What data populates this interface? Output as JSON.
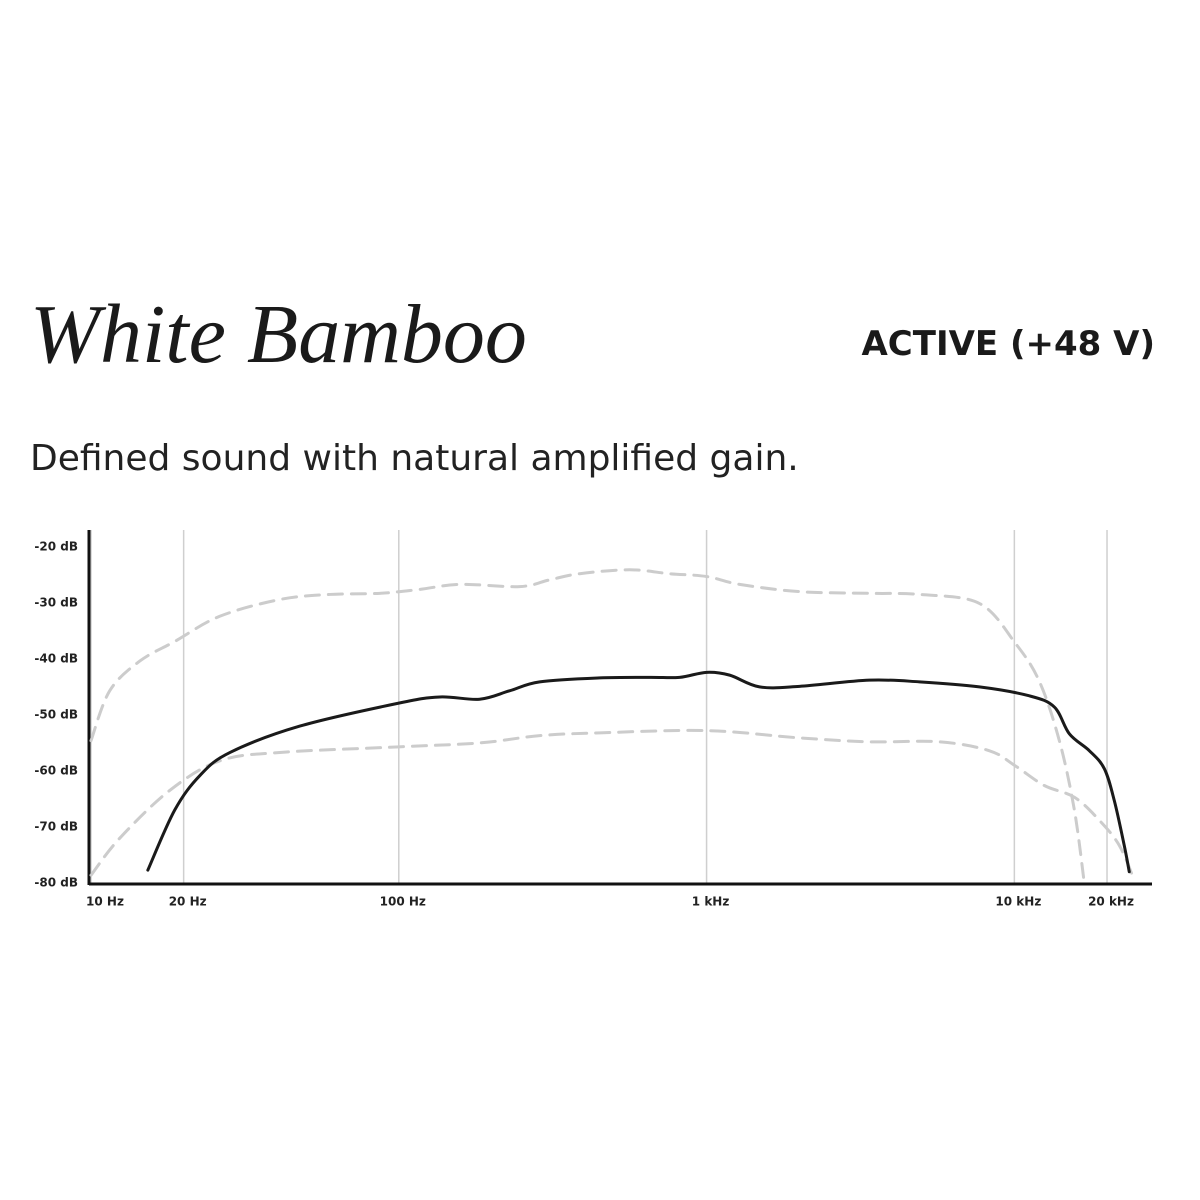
{
  "chart_data": {
    "type": "line",
    "title": "White Bamboo",
    "badge": "ACTIVE (+48 V)",
    "subtitle": "Defined sound with natural amplified gain.",
    "log_x": true,
    "grid": true,
    "xlim": [
      10,
      28000
    ],
    "ylim": [
      -80,
      -17
    ],
    "xticks": [
      {
        "value": 10,
        "label": "10 Hz"
      },
      {
        "value": 20,
        "label": "20 Hz"
      },
      {
        "value": 100,
        "label": "100 Hz"
      },
      {
        "value": 1000,
        "label": "1 kHz"
      },
      {
        "value": 10000,
        "label": "10 kHz"
      },
      {
        "value": 20000,
        "label": "20 kHz"
      }
    ],
    "yticks": [
      {
        "value": -20,
        "label": "-20 dB"
      },
      {
        "value": -30,
        "label": "-30 dB"
      },
      {
        "value": -40,
        "label": "-40 dB"
      },
      {
        "value": -50,
        "label": "-50 dB"
      },
      {
        "value": -60,
        "label": "-60 dB"
      },
      {
        "value": -70,
        "label": "-70 dB"
      },
      {
        "value": -80,
        "label": "-80 dB"
      }
    ],
    "series": [
      {
        "color": "#cccccc",
        "dashed": true,
        "x": [
          10,
          11.5,
          14.4,
          18.7,
          26.2,
          41.1,
          59.7,
          86.7,
          117,
          158,
          247,
          309,
          387,
          562,
          758,
          1000,
          1280,
          2004,
          3381,
          4918,
          7695,
          10070,
          12050,
          14000,
          15670,
          16870
        ],
        "values": [
          -54.6,
          -45.7,
          -40.4,
          -36.9,
          -32.4,
          -29.4,
          -28.5,
          -28.3,
          -27.6,
          -26.7,
          -27.1,
          -25.9,
          -24.8,
          -24.1,
          -24.8,
          -25.3,
          -26.7,
          -28.0,
          -28.3,
          -28.5,
          -30.1,
          -37.2,
          -44.0,
          -54.6,
          -67.0,
          -80
        ]
      },
      {
        "color": "#cccccc",
        "dashed": true,
        "x": [
          10,
          12.4,
          18.0,
          26.2,
          41.1,
          100,
          183,
          287,
          450,
          1000,
          2004,
          3381,
          5705,
          8299,
          10070,
          12510,
          15670,
          18880,
          21930,
          24530
        ],
        "values": [
          -78.6,
          -72.0,
          -63.5,
          -58.2,
          -56.7,
          -55.7,
          -55.0,
          -53.7,
          -53.2,
          -52.8,
          -54.1,
          -54.8,
          -54.8,
          -56.4,
          -59.1,
          -62.6,
          -64.7,
          -68.8,
          -73.3,
          -79.5
        ]
      },
      {
        "color": "#1a1a1a",
        "dashed": false,
        "x": [
          15.3,
          18.7,
          22.6,
          28.3,
          47.7,
          100,
          136,
          183,
          229,
          287,
          450,
          653,
          817,
          1000,
          1188,
          1486,
          2004,
          3381,
          4918,
          7695,
          11190,
          13490,
          15100,
          17530,
          19600,
          21120,
          22750,
          23620
        ],
        "values": [
          -77.7,
          -67.0,
          -60.8,
          -56.7,
          -52.0,
          -47.9,
          -46.8,
          -47.2,
          -45.7,
          -44.1,
          -43.4,
          -43.3,
          -43.3,
          -42.4,
          -42.9,
          -45.0,
          -44.9,
          -43.8,
          -44.1,
          -45.0,
          -46.6,
          -48.6,
          -53.4,
          -56.4,
          -59.6,
          -65.3,
          -73.3,
          -78.0
        ]
      }
    ]
  }
}
